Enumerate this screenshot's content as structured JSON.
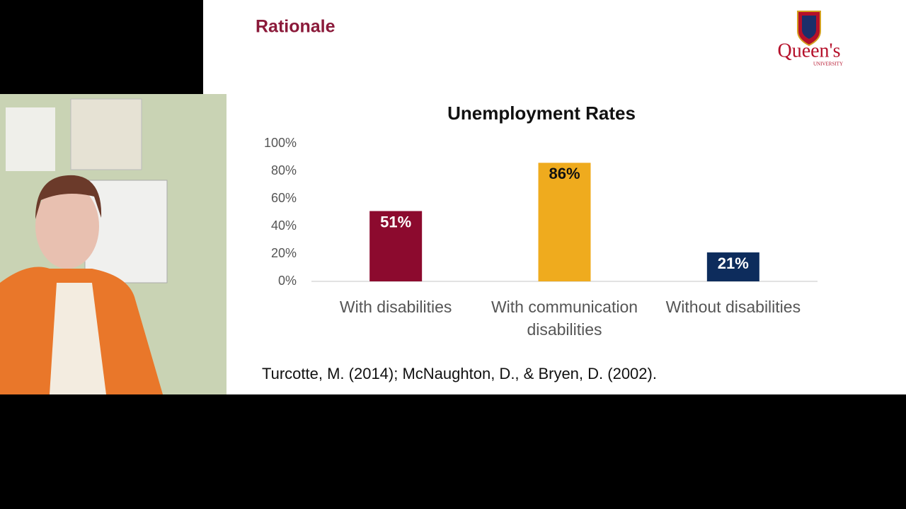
{
  "slide_title": "Rationale",
  "logo": {
    "name": "Queen's",
    "subtitle": "UNIVERSITY"
  },
  "citation": "Turcotte, M. (2014);  McNaughton, D., & Bryen, D. (2002).",
  "chart_data": {
    "type": "bar",
    "title": "Unemployment Rates",
    "categories": [
      "With disabilities",
      "With communication disabilities",
      "Without disabilities"
    ],
    "values": [
      51,
      86,
      21
    ],
    "value_labels": [
      "51%",
      "86%",
      "21%"
    ],
    "colors": [
      "#8c0a2e",
      "#efab1e",
      "#0d2c5c"
    ],
    "ylim": [
      0,
      100
    ],
    "yticks": [
      {
        "value": 0,
        "label": "0%"
      },
      {
        "value": 20,
        "label": "20%"
      },
      {
        "value": 40,
        "label": "40%"
      },
      {
        "value": 60,
        "label": "60%"
      },
      {
        "value": 80,
        "label": "80%"
      },
      {
        "value": 100,
        "label": "100%"
      }
    ],
    "grid": false
  }
}
